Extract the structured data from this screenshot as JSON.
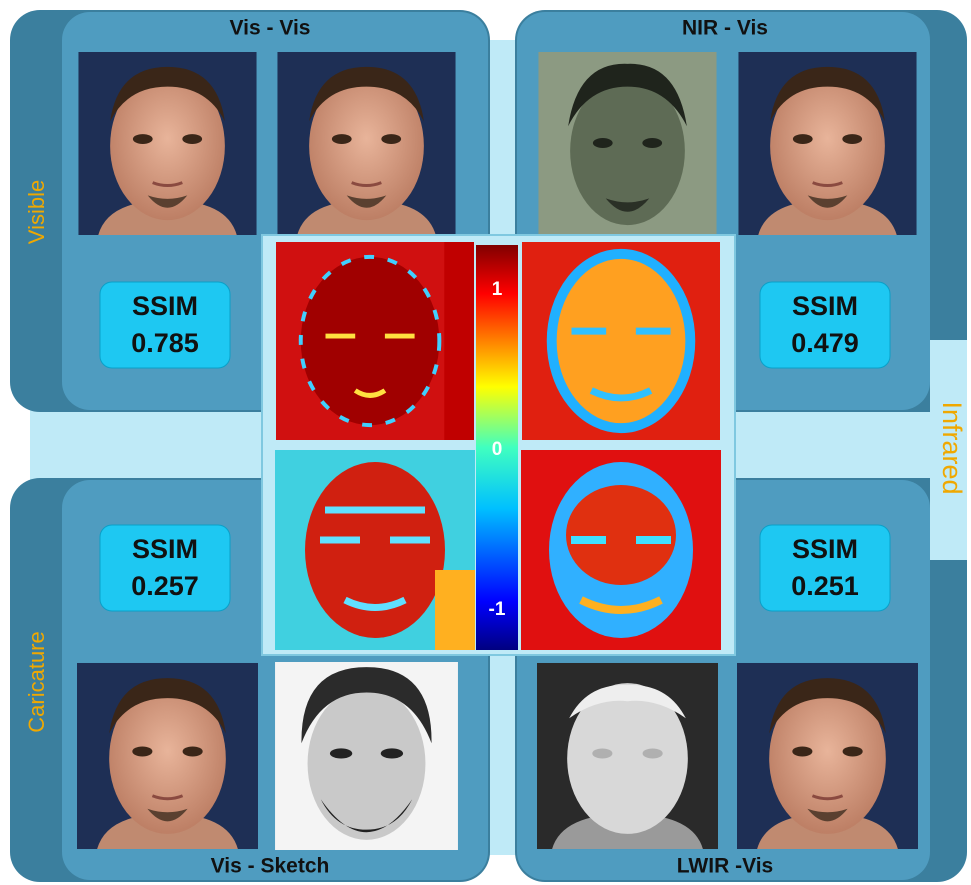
{
  "side_labels": {
    "top_left": "Visible",
    "right": "Infrared",
    "bottom_left": "Caricature"
  },
  "panels": [
    {
      "title": "Vis - Vis",
      "metric": "SSIM",
      "score": "0.785"
    },
    {
      "title": "NIR - Vis",
      "metric": "SSIM",
      "score": "0.479"
    },
    {
      "title": "Vis - Sketch",
      "metric": "SSIM",
      "score": "0.257"
    },
    {
      "title": "LWIR -Vis",
      "metric": "SSIM",
      "score": "0.251"
    }
  ],
  "colorbar": {
    "ticks": [
      1,
      0,
      -1
    ]
  }
}
